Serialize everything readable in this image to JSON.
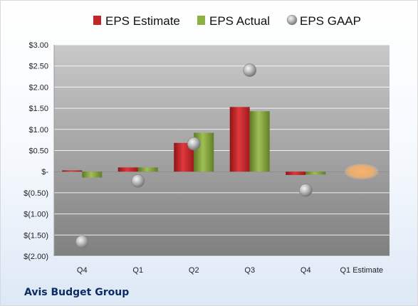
{
  "company": "Avis Budget Group",
  "chart_data": {
    "type": "bar",
    "categories": [
      "Q4",
      "Q1",
      "Q2",
      "Q3",
      "Q4",
      "Q1 Estimate"
    ],
    "series": [
      {
        "name": "EPS Estimate",
        "color": "#c0262a",
        "values": [
          0.03,
          0.1,
          0.68,
          1.53,
          -0.08,
          null
        ]
      },
      {
        "name": "EPS Actual",
        "color": "#7f9c3a",
        "values": [
          -0.14,
          0.1,
          0.92,
          1.43,
          -0.07,
          null
        ]
      },
      {
        "name": "EPS GAAP",
        "color": "#a6a6a6",
        "type": "scatter",
        "values": [
          -1.66,
          -0.22,
          0.66,
          2.4,
          -0.44,
          null
        ]
      }
    ],
    "projected": {
      "category": "Q1 Estimate",
      "value": 0.0,
      "color": "#f2a85e"
    },
    "yticks": [
      "$3.00",
      "$2.50",
      "$2.00",
      "$1.50",
      "$1.00",
      "$0.50",
      "$-",
      "$(0.50)",
      "$(1.00)",
      "$(1.50)",
      "$(2.00)"
    ],
    "ylim": [
      -2,
      3
    ],
    "legend_position": "top",
    "grid": true
  }
}
